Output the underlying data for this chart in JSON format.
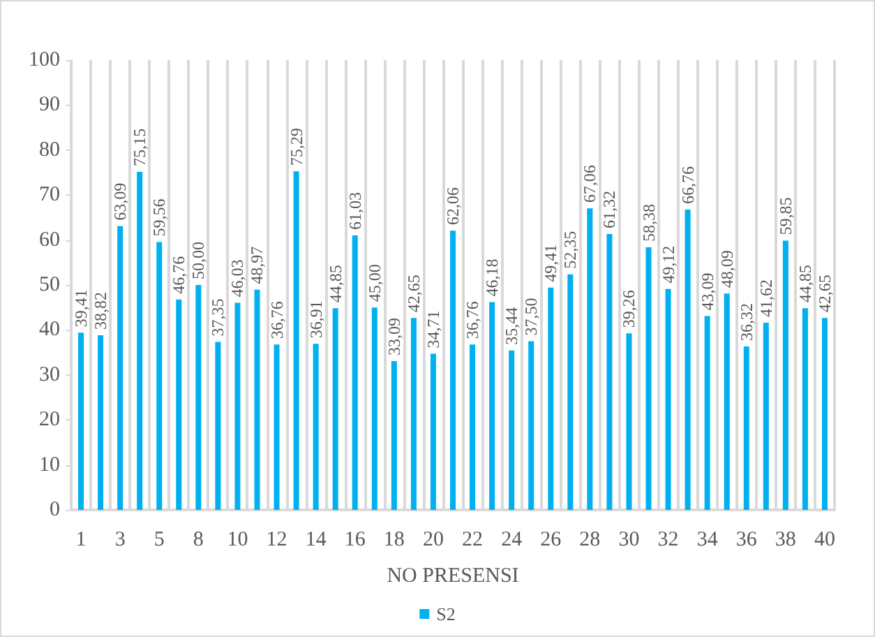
{
  "chart_data": {
    "type": "bar",
    "xlabel": "NO PRESENSI",
    "categories": [
      "1",
      null,
      "3",
      null,
      "5",
      null,
      "8",
      null,
      "10",
      null,
      "12",
      null,
      "14",
      null,
      "16",
      null,
      "18",
      null,
      "20",
      null,
      "22",
      null,
      "24",
      null,
      "26",
      null,
      "28",
      null,
      "30",
      null,
      "32",
      null,
      "34",
      null,
      "36",
      null,
      "38",
      null,
      "40"
    ],
    "series": [
      {
        "name": "S2",
        "color": "#00b0f0",
        "values": [
          39.41,
          38.82,
          63.09,
          75.15,
          59.56,
          46.76,
          50.0,
          37.35,
          46.03,
          48.97,
          36.76,
          75.29,
          36.91,
          44.85,
          61.03,
          45.0,
          33.09,
          42.65,
          34.71,
          62.06,
          36.76,
          46.18,
          35.44,
          37.5,
          49.41,
          52.35,
          67.06,
          61.32,
          39.26,
          58.38,
          49.12,
          66.76,
          43.09,
          48.09,
          36.32,
          41.62,
          59.85,
          44.85,
          42.65
        ],
        "value_labels": [
          "39,41",
          "38,82",
          "63,09",
          "75,15",
          "59,56",
          "46,76",
          "50,00",
          "37,35",
          "46,03",
          "48,97",
          "36,76",
          "75,29",
          "36,91",
          "44,85",
          "61,03",
          "45,00",
          "33,09",
          "42,65",
          "34,71",
          "62,06",
          "36,76",
          "46,18",
          "35,44",
          "37,50",
          "49,41",
          "52,35",
          "67,06",
          "61,32",
          "39,26",
          "58,38",
          "49,12",
          "66,76",
          "43,09",
          "48,09",
          "36,32",
          "41,62",
          "59,85",
          "44,85",
          "42,65"
        ]
      }
    ],
    "ylim": [
      0,
      100
    ],
    "yticks": [
      0,
      10,
      20,
      30,
      40,
      50,
      60,
      70,
      80,
      90,
      100
    ],
    "grid": "x",
    "legend": "bottom"
  }
}
